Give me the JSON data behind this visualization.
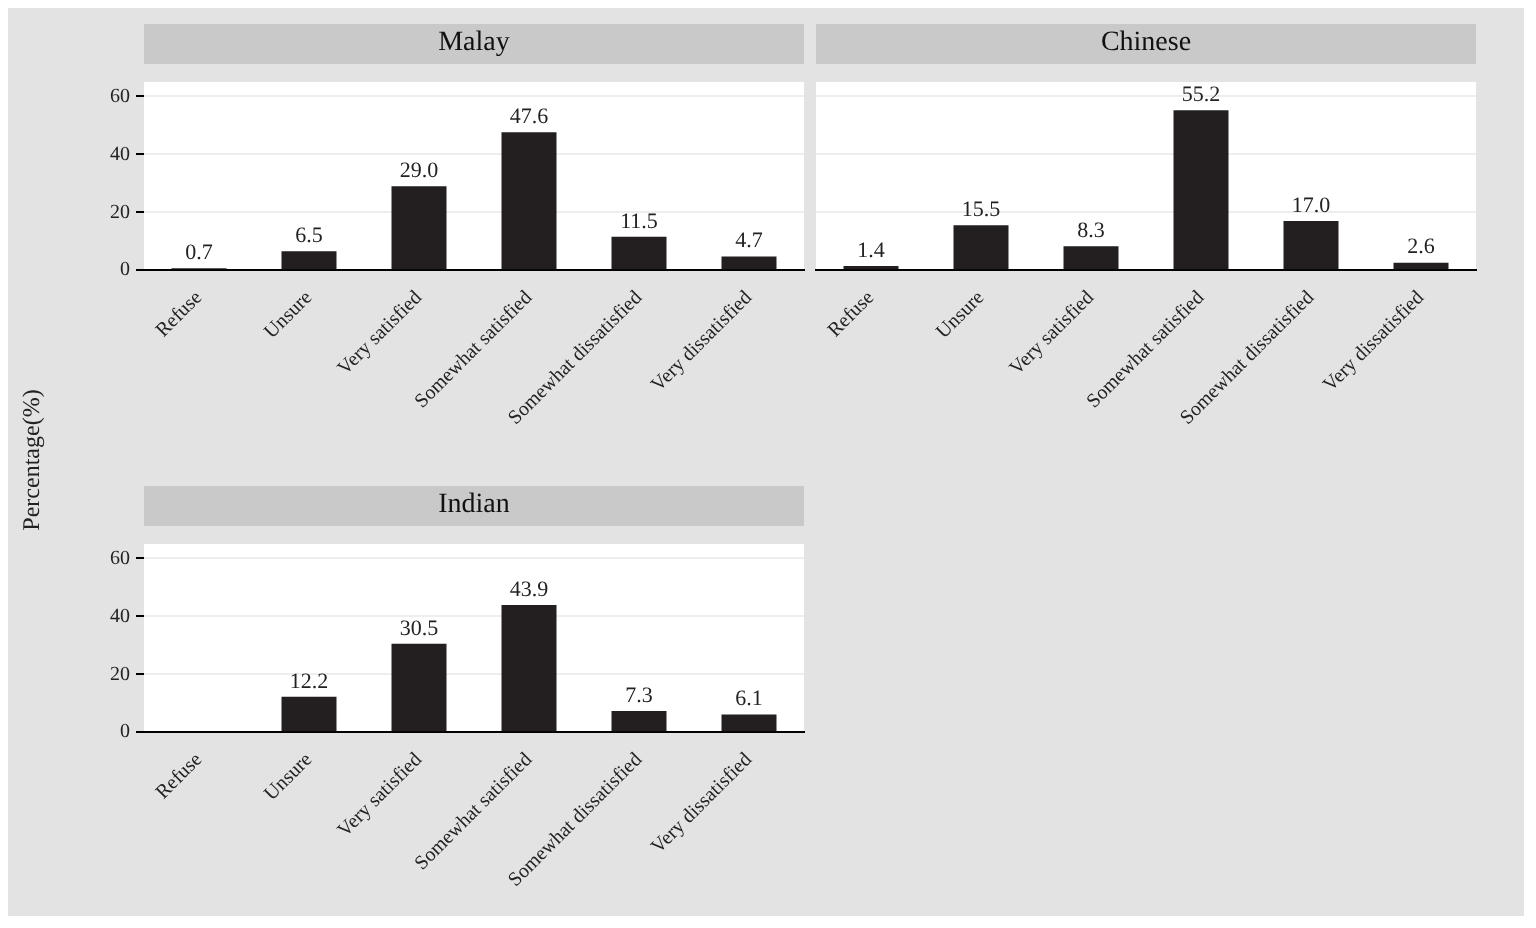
{
  "chart_data": [
    {
      "type": "bar",
      "title": "Malay",
      "ylabel": "Percentage(%)",
      "categories": [
        "Refuse",
        "Unsure",
        "Very satisfied",
        "Somewhat satisfied",
        "Somewhat dissatisfied",
        "Very dissatisfied"
      ],
      "values": [
        0.7,
        6.5,
        29.0,
        47.6,
        11.5,
        4.7
      ],
      "value_labels": [
        "0.7",
        "6.5",
        "29.0",
        "47.6",
        "11.5",
        "4.7"
      ],
      "color": "#231f20",
      "ylim": [
        0,
        65
      ],
      "yticks": [
        0,
        20,
        40,
        60
      ],
      "grid": "y",
      "legend": false
    },
    {
      "type": "bar",
      "title": "Chinese",
      "categories": [
        "Refuse",
        "Unsure",
        "Very satisfied",
        "Somewhat satisfied",
        "Somewhat dissatisfied",
        "Very dissatisfied"
      ],
      "values": [
        1.4,
        15.5,
        8.3,
        55.2,
        17.0,
        2.6
      ],
      "value_labels": [
        "1.4",
        "15.5",
        "8.3",
        "55.2",
        "17.0",
        "2.6"
      ],
      "color": "#231f20",
      "ylim": [
        0,
        65
      ],
      "yticks": [
        0,
        20,
        40,
        60
      ],
      "tick_labels": "x",
      "grid": "y",
      "legend": false
    },
    {
      "type": "bar",
      "title": "Indian",
      "categories": [
        "Refuse",
        "Unsure",
        "Very satisfied",
        "Somewhat satisfied",
        "Somewhat dissatisfied",
        "Very dissatisfied"
      ],
      "values": [
        null,
        12.2,
        30.5,
        43.9,
        7.3,
        6.1
      ],
      "value_labels": [
        null,
        "12.2",
        "30.5",
        "43.9",
        "7.3",
        "6.1"
      ],
      "color": "#231f20",
      "ylim": [
        0,
        65
      ],
      "yticks": [
        0,
        20,
        40,
        60
      ],
      "grid": "y",
      "legend": false
    }
  ]
}
